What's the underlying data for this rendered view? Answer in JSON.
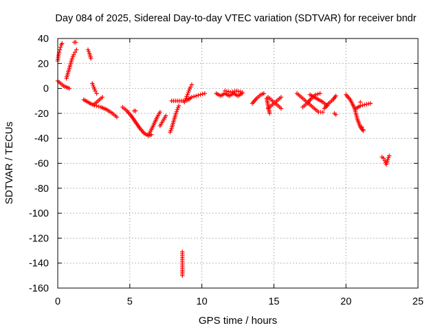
{
  "chart_data": {
    "type": "scatter",
    "title": "Day 084 of 2025, Sidereal Day-to-day VTEC variation (SDTVAR) for receiver bndr",
    "xlabel": "GPS time / hours",
    "ylabel": "SDTVAR / TECUs",
    "xlim": [
      0,
      25
    ],
    "ylim": [
      -160,
      40
    ],
    "xticks": [
      0,
      5,
      10,
      15,
      20,
      25
    ],
    "yticks": [
      -160,
      -140,
      -120,
      -100,
      -80,
      -60,
      -40,
      -20,
      0,
      20,
      40
    ],
    "grid": true,
    "marker": "+",
    "color": "#ff0000",
    "segments": [
      {
        "x": [
          0.0,
          0.05,
          0.1,
          0.15,
          0.2,
          0.25,
          0.3
        ],
        "y": [
          22,
          26,
          29,
          31,
          33,
          35,
          36
        ]
      },
      {
        "x": [
          0.0,
          0.2,
          0.4,
          0.6,
          0.8
        ],
        "y": [
          6,
          4,
          2,
          1,
          0
        ]
      },
      {
        "x": [
          0.6,
          0.7,
          0.8,
          0.9,
          1.0,
          1.1,
          1.2,
          1.3
        ],
        "y": [
          8,
          12,
          16,
          20,
          24,
          27,
          29,
          31
        ]
      },
      {
        "x": [
          1.15,
          1.25
        ],
        "y": [
          37,
          37
        ]
      },
      {
        "x": [
          2.1,
          2.2,
          2.3
        ],
        "y": [
          31,
          28,
          24
        ]
      },
      {
        "x": [
          2.4,
          2.5,
          2.6,
          2.7
        ],
        "y": [
          4,
          1,
          -2,
          -4
        ]
      },
      {
        "x": [
          1.8,
          2.1,
          2.4,
          2.7,
          3.0,
          3.4,
          3.8,
          4.1
        ],
        "y": [
          -9,
          -11,
          -13,
          -14,
          -15,
          -17,
          -20,
          -23
        ]
      },
      {
        "x": [
          2.5,
          2.8,
          3.1
        ],
        "y": [
          -13,
          -10,
          -7
        ]
      },
      {
        "x": [
          4.5,
          4.8,
          5.1,
          5.4,
          5.7,
          6.0,
          6.3,
          6.5
        ],
        "y": [
          -15,
          -18,
          -22,
          -27,
          -32,
          -36,
          -38,
          -37
        ]
      },
      {
        "x": [
          5.3,
          5.4
        ],
        "y": [
          -18,
          -18
        ]
      },
      {
        "x": [
          6.3,
          6.5,
          6.7,
          6.9,
          7.1
        ],
        "y": [
          -37,
          -33,
          -28,
          -23,
          -19
        ]
      },
      {
        "x": [
          7.1,
          7.3,
          7.5
        ],
        "y": [
          -30,
          -26,
          -22
        ]
      },
      {
        "x": [
          7.8,
          7.9,
          8.0,
          8.1,
          8.2,
          8.3,
          8.4
        ],
        "y": [
          -35,
          -32,
          -28,
          -24,
          -20,
          -17,
          -14
        ]
      },
      {
        "x": [
          7.9,
          8.3,
          8.7,
          9.1
        ],
        "y": [
          -10,
          -10,
          -10,
          -9
        ]
      },
      {
        "x": [
          8.8,
          8.9,
          9.0,
          9.1,
          9.2,
          9.3
        ],
        "y": [
          -11,
          -8,
          -5,
          -2,
          1,
          3
        ]
      },
      {
        "x": [
          9.0,
          9.3,
          9.6,
          9.9,
          10.2
        ],
        "y": [
          -9,
          -7,
          -6,
          -5,
          -4
        ]
      },
      {
        "x": [
          8.65,
          8.65,
          8.65,
          8.65,
          8.65,
          8.65,
          8.65
        ],
        "y": [
          -150,
          -146,
          -143,
          -140,
          -137,
          -134,
          -131
        ]
      },
      {
        "x": [
          11.0,
          11.3,
          11.6,
          11.9,
          12.2,
          12.5,
          12.8
        ],
        "y": [
          -4,
          -6,
          -4,
          -6,
          -4,
          -6,
          -4
        ]
      },
      {
        "x": [
          11.6,
          12.0,
          12.4,
          12.8
        ],
        "y": [
          -2,
          -3,
          -2,
          -3
        ]
      },
      {
        "x": [
          13.5,
          13.8,
          14.1,
          14.3
        ],
        "y": [
          -12,
          -8,
          -5,
          -4
        ]
      },
      {
        "x": [
          14.5,
          14.7
        ],
        "y": [
          -8,
          -20
        ]
      },
      {
        "x": [
          14.6,
          14.9,
          15.2,
          15.5
        ],
        "y": [
          -7,
          -10,
          -13,
          -16
        ]
      },
      {
        "x": [
          14.6,
          14.9,
          15.2,
          15.5
        ],
        "y": [
          -16,
          -13,
          -10,
          -7
        ]
      },
      {
        "x": [
          16.6,
          16.9,
          17.2,
          17.5,
          17.8,
          18.1,
          18.4
        ],
        "y": [
          -4,
          -7,
          -10,
          -13,
          -16,
          -19,
          -19
        ]
      },
      {
        "x": [
          17.0,
          17.3,
          17.6,
          17.9,
          18.2
        ],
        "y": [
          -15,
          -12,
          -8,
          -5,
          -4
        ]
      },
      {
        "x": [
          17.5,
          17.8,
          18.1,
          18.4,
          18.7
        ],
        "y": [
          -5,
          -7,
          -9,
          -11,
          -14
        ]
      },
      {
        "x": [
          18.5,
          18.8,
          19.1,
          19.3
        ],
        "y": [
          -16,
          -12,
          -9,
          -6
        ]
      },
      {
        "x": [
          19.2,
          19.3
        ],
        "y": [
          -20,
          -21
        ]
      },
      {
        "x": [
          20.0,
          20.3,
          20.6,
          20.8,
          21.0,
          21.2
        ],
        "y": [
          -5,
          -9,
          -16,
          -25,
          -31,
          -34
        ]
      },
      {
        "x": [
          21.1,
          21.2
        ],
        "y": [
          -31,
          -33
        ]
      },
      {
        "x": [
          20.7,
          21.0,
          21.3,
          21.7
        ],
        "y": [
          -16,
          -14,
          -13,
          -12
        ]
      },
      {
        "x": [
          21.0
        ],
        "y": [
          -11
        ]
      },
      {
        "x": [
          22.5,
          22.6,
          22.7,
          22.8,
          22.9,
          23.0
        ],
        "y": [
          -55,
          -56,
          -58,
          -61,
          -57,
          -54
        ]
      }
    ]
  }
}
